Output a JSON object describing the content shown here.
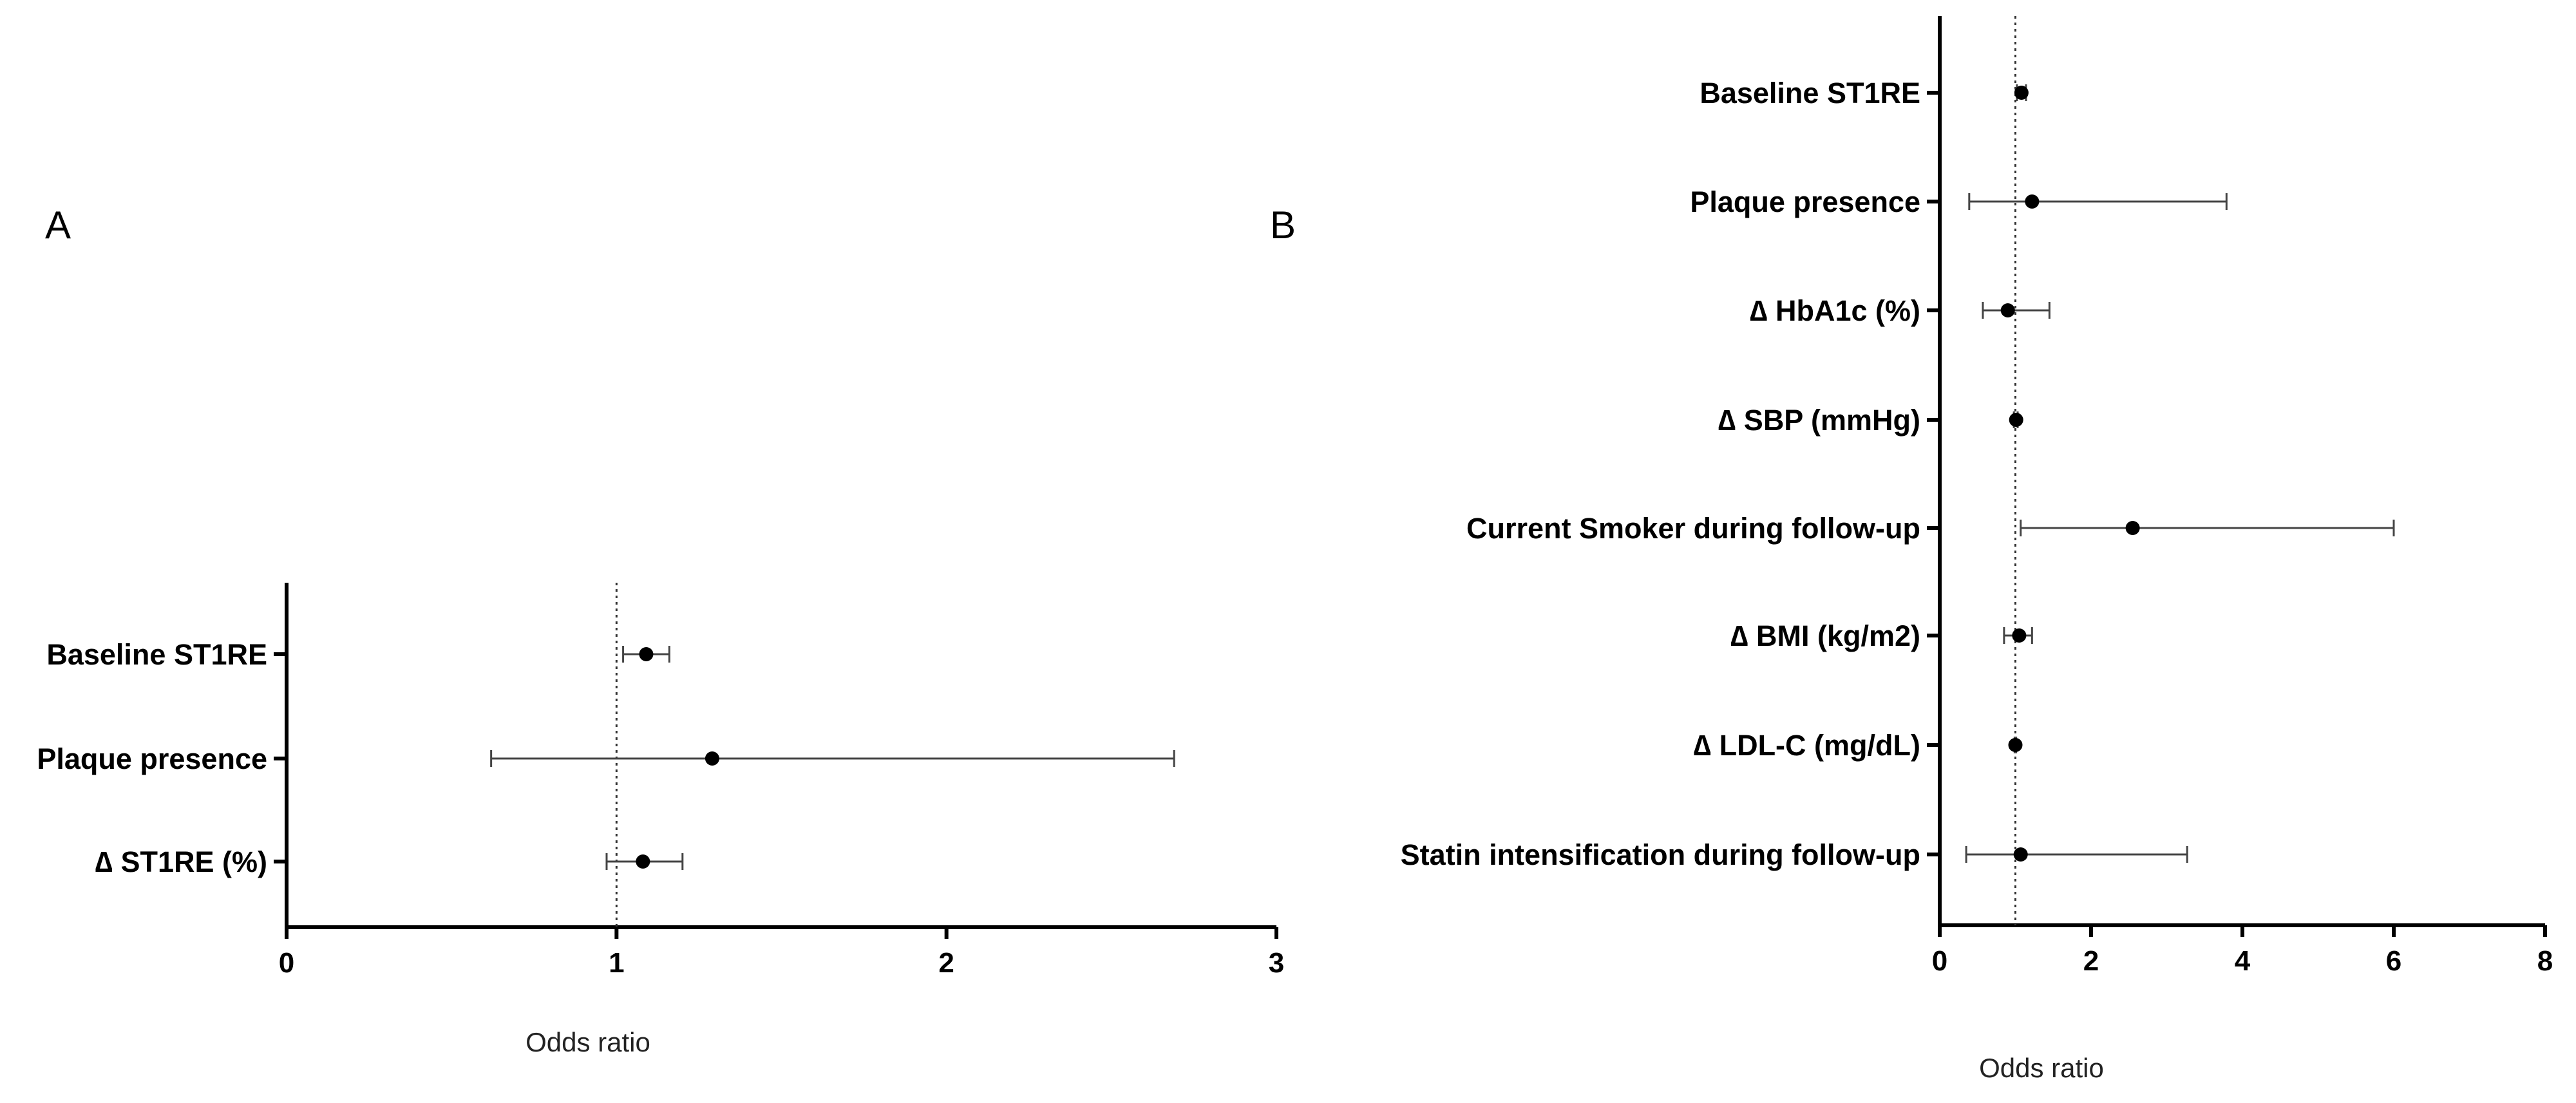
{
  "chart_data": [
    {
      "panel": "A",
      "type": "forest",
      "xlabel": "Odds ratio",
      "xlim": [
        0,
        3
      ],
      "xticks": [
        0,
        1,
        2,
        3
      ],
      "reference_line": 1,
      "grid": false,
      "rows": [
        {
          "label": "Baseline ST1RE",
          "or": 1.09,
          "lower": 1.02,
          "upper": 1.16
        },
        {
          "label": "Plaque presence",
          "or": 1.29,
          "lower": 0.62,
          "upper": 2.69
        },
        {
          "label": "∆ ST1RE (%)",
          "or": 1.08,
          "lower": 0.97,
          "upper": 1.2
        }
      ]
    },
    {
      "panel": "B",
      "type": "forest",
      "xlabel": "Odds ratio",
      "xlim": [
        0,
        8
      ],
      "xticks": [
        0,
        2,
        4,
        6,
        8
      ],
      "reference_line": 1,
      "grid": false,
      "rows": [
        {
          "label": "Baseline ST1RE",
          "or": 1.08,
          "lower": 1.02,
          "upper": 1.14
        },
        {
          "label": "Plaque presence",
          "or": 1.22,
          "lower": 0.39,
          "upper": 3.79
        },
        {
          "label": "∆ HbA1c (%)",
          "or": 0.9,
          "lower": 0.57,
          "upper": 1.45
        },
        {
          "label": "∆ SBP (mmHg)",
          "or": 1.01,
          "lower": 0.98,
          "upper": 1.03
        },
        {
          "label": "Current Smoker during follow-up",
          "or": 2.55,
          "lower": 1.07,
          "upper": 6.0
        },
        {
          "label": "∆ BMI (kg/m2)",
          "or": 1.05,
          "lower": 0.85,
          "upper": 1.22
        },
        {
          "label": "∆ LDL-C (mg/dL)",
          "or": 1.0,
          "lower": 0.99,
          "upper": 1.01
        },
        {
          "label": "Statin intensification during follow-up",
          "or": 1.07,
          "lower": 0.35,
          "upper": 3.27
        }
      ]
    }
  ]
}
